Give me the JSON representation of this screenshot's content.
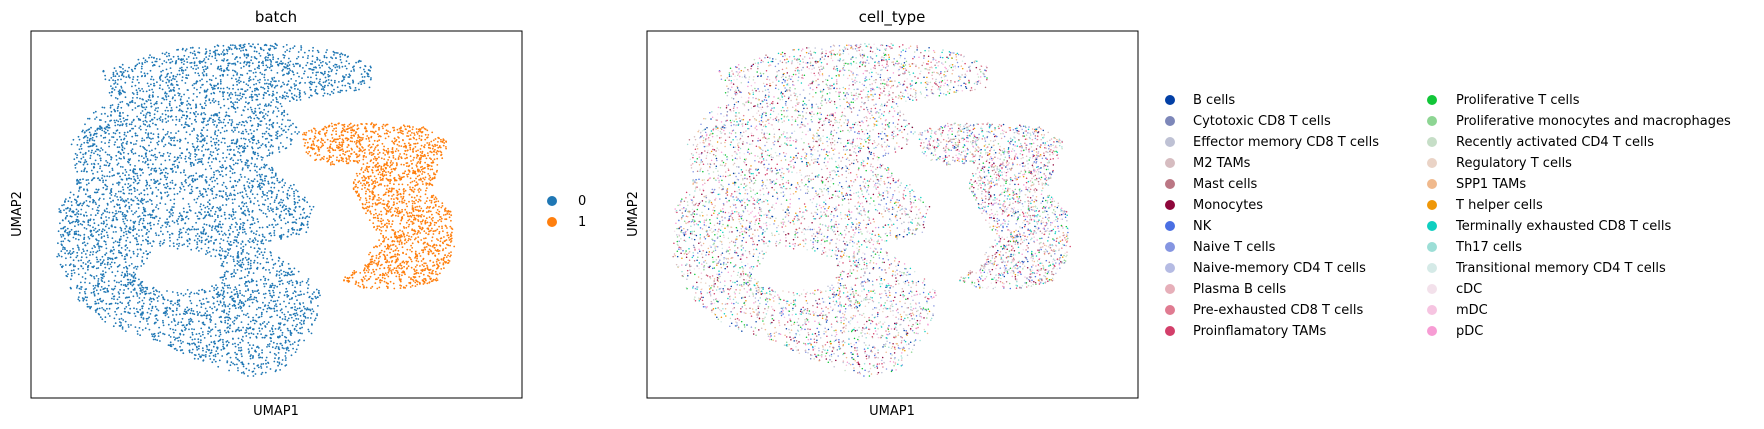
{
  "chart_data": [
    {
      "type": "scatter",
      "title": "batch",
      "xlabel": "UMAP1",
      "ylabel": "UMAP2",
      "grid": false,
      "ticks": false,
      "legend_placement": "right",
      "series": [
        {
          "name": "0",
          "color": "#1f77b4"
        },
        {
          "name": "1",
          "color": "#ff7f0e"
        }
      ]
    },
    {
      "type": "scatter",
      "title": "cell_type",
      "xlabel": "UMAP1",
      "ylabel": "UMAP2",
      "grid": false,
      "ticks": false,
      "legend_placement": "right",
      "series": [
        {
          "name": "B cells",
          "color": "#023fa5"
        },
        {
          "name": "Cytotoxic CD8 T cells",
          "color": "#7d87b9"
        },
        {
          "name": "Effector memory CD8 T cells",
          "color": "#bec1d4"
        },
        {
          "name": "M2 TAMs",
          "color": "#d6bcc0"
        },
        {
          "name": "Mast cells",
          "color": "#bb7784"
        },
        {
          "name": "Monocytes",
          "color": "#8e063b"
        },
        {
          "name": "NK",
          "color": "#4a6fe3"
        },
        {
          "name": "Naive T cells",
          "color": "#8595e1"
        },
        {
          "name": "Naive-memory CD4 T cells",
          "color": "#b5bbe3"
        },
        {
          "name": "Plasma B cells",
          "color": "#e6afb9"
        },
        {
          "name": "Pre-exhausted CD8 T cells",
          "color": "#e07b91"
        },
        {
          "name": "Proinflamatory TAMs",
          "color": "#d33f6a"
        },
        {
          "name": "Proliferative T cells",
          "color": "#11c638"
        },
        {
          "name": "Proliferative monocytes and macrophages",
          "color": "#8dd593"
        },
        {
          "name": "Recently activated CD4 T cells",
          "color": "#c6dec7"
        },
        {
          "name": "Regulatory T cells",
          "color": "#ead3c6"
        },
        {
          "name": "SPP1 TAMs",
          "color": "#f0b98d"
        },
        {
          "name": "T helper cells",
          "color": "#ef9708"
        },
        {
          "name": "Terminally exhausted CD8 T cells",
          "color": "#0fcfc0"
        },
        {
          "name": "Th17 cells",
          "color": "#9cded6"
        },
        {
          "name": "Transitional memory CD4 T cells",
          "color": "#d5eae7"
        },
        {
          "name": "cDC",
          "color": "#f3e1eb"
        },
        {
          "name": "mDC",
          "color": "#f6c4e1"
        },
        {
          "name": "pDC",
          "color": "#f79cd4"
        }
      ]
    }
  ]
}
